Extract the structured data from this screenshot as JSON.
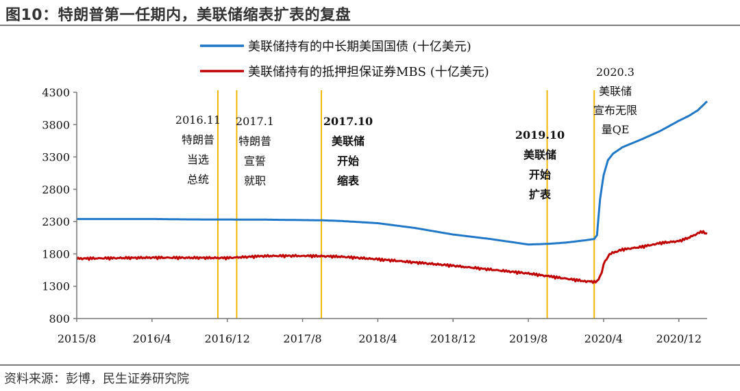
{
  "header": {
    "title": "图10：特朗普第一任期内，美联储缩表扩表的复盘"
  },
  "footer": {
    "source": "资料来源：彭博，民生证券研究院"
  },
  "colors": {
    "treasury": "#1f77c8",
    "mbs": "#c00000",
    "event_line": "#f2b705",
    "axis": "#777777"
  },
  "chart_data": {
    "type": "line",
    "title": "",
    "xlabel": "",
    "ylabel": "",
    "ylim": [
      800,
      4300
    ],
    "yticks": [
      800,
      1300,
      1800,
      2300,
      2800,
      3300,
      3800,
      4300
    ],
    "xticks": [
      "2015/8",
      "2016/4",
      "2016/12",
      "2017/8",
      "2018/4",
      "2018/12",
      "2019/8",
      "2020/4",
      "2020/12"
    ],
    "xrange": [
      "2015/8",
      "2021/3"
    ],
    "grid": false,
    "legend_position": "top",
    "series": [
      {
        "name": "美联储持有的中长期美国国债 (十亿美元)",
        "color": "#1f77c8",
        "points": [
          [
            "2015/8",
            2340
          ],
          [
            "2016/4",
            2340
          ],
          [
            "2016/8",
            2333
          ],
          [
            "2016/12",
            2332
          ],
          [
            "2017/4",
            2330
          ],
          [
            "2017/8",
            2323
          ],
          [
            "2017/10",
            2320
          ],
          [
            "2017/12",
            2310
          ],
          [
            "2018/4",
            2275
          ],
          [
            "2018/8",
            2200
          ],
          [
            "2018/12",
            2100
          ],
          [
            "2019/4",
            2030
          ],
          [
            "2019/8",
            1945
          ],
          [
            "2019/10",
            1955
          ],
          [
            "2019/12",
            1975
          ],
          [
            "2020/2",
            2010
          ],
          [
            "2020/3/1",
            2030
          ],
          [
            "2020/3/10",
            2090
          ],
          [
            "2020/3/20",
            2650
          ],
          [
            "2020/4",
            3020
          ],
          [
            "2020/4/15",
            3250
          ],
          [
            "2020/5",
            3350
          ],
          [
            "2020/6",
            3450
          ],
          [
            "2020/8",
            3570
          ],
          [
            "2020/10",
            3700
          ],
          [
            "2020/12",
            3860
          ],
          [
            "2021/1",
            3930
          ],
          [
            "2021/2",
            4020
          ],
          [
            "2021/3",
            4160
          ]
        ]
      },
      {
        "name": "美联储持有的抵押担保证券MBS (十亿美元)",
        "color": "#c00000",
        "points": [
          [
            "2015/8",
            1730
          ],
          [
            "2016/4",
            1745
          ],
          [
            "2016/12",
            1740
          ],
          [
            "2017/4",
            1770
          ],
          [
            "2017/8",
            1773
          ],
          [
            "2017/10",
            1768
          ],
          [
            "2017/12",
            1760
          ],
          [
            "2018/4",
            1720
          ],
          [
            "2018/8",
            1670
          ],
          [
            "2018/12",
            1620
          ],
          [
            "2019/4",
            1560
          ],
          [
            "2019/8",
            1500
          ],
          [
            "2019/10",
            1460
          ],
          [
            "2019/12",
            1420
          ],
          [
            "2020/2",
            1380
          ],
          [
            "2020/3/10",
            1370
          ],
          [
            "2020/3/25",
            1500
          ],
          [
            "2020/4",
            1650
          ],
          [
            "2020/4/20",
            1800
          ],
          [
            "2020/6",
            1870
          ],
          [
            "2020/8",
            1910
          ],
          [
            "2020/10",
            1970
          ],
          [
            "2020/12",
            2000
          ],
          [
            "2021/1",
            2050
          ],
          [
            "2021/2/15",
            2150
          ],
          [
            "2021/3",
            2110
          ]
        ]
      }
    ],
    "events": [
      {
        "date": "2016/11",
        "lines": [
          "2016.11",
          "特朗普",
          "当选",
          "总统"
        ],
        "bold": false
      },
      {
        "date": "2017/1",
        "lines": [
          "2017.1",
          "特朗普",
          "宣誓",
          "就职"
        ],
        "bold": false
      },
      {
        "date": "2017/10",
        "lines": [
          "2017.10",
          "美联储",
          "开始",
          "缩表"
        ],
        "bold": true
      },
      {
        "date": "2019/10",
        "lines": [
          "2019.10",
          "美联储",
          "开始",
          "扩表"
        ],
        "bold": true
      },
      {
        "date": "2020/3",
        "lines": [
          "2020.3",
          "美联储",
          "宣布无限",
          "量QE"
        ],
        "bold": false
      }
    ]
  }
}
